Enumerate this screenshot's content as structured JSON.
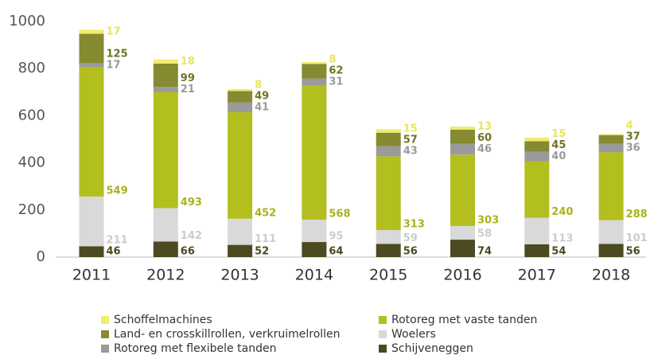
{
  "chart_data": {
    "type": "stacked_bar",
    "categories": [
      "2011",
      "2012",
      "2013",
      "2014",
      "2015",
      "2016",
      "2017",
      "2018"
    ],
    "series": [
      {
        "name": "Schijveneggen",
        "color": "#4b4a20",
        "label_color": "#4b4a20",
        "values": [
          46,
          66,
          52,
          64,
          56,
          74,
          54,
          56
        ]
      },
      {
        "name": "Woelers",
        "color": "#d9d9d9",
        "label_color": "#cccccc",
        "values": [
          211,
          142,
          111,
          95,
          59,
          58,
          113,
          101
        ]
      },
      {
        "name": "Rotoreg met vaste tanden",
        "color": "#b3be1f",
        "label_color": "#a8b31a",
        "values": [
          549,
          493,
          452,
          568,
          313,
          303,
          240,
          288
        ]
      },
      {
        "name": "Rotoreg met flexibele tanden",
        "color": "#9a9a9a",
        "label_color": "#9a9a9a",
        "values": [
          17,
          21,
          41,
          31,
          43,
          46,
          40,
          36
        ]
      },
      {
        "name": "Land- en crosskillrollen, verkruimelrollen",
        "color": "#868a30",
        "label_color": "#6f7326",
        "values": [
          125,
          99,
          49,
          62,
          57,
          60,
          45,
          37
        ]
      },
      {
        "name": "Schoffelmachines",
        "color": "#f1ec6c",
        "label_color": "#ece45a",
        "values": [
          17,
          18,
          8,
          8,
          15,
          13,
          15,
          4
        ]
      }
    ],
    "ylim": [
      0,
      1000
    ],
    "yticks": [
      0,
      200,
      400,
      600,
      800,
      1000
    ],
    "grid": false
  }
}
